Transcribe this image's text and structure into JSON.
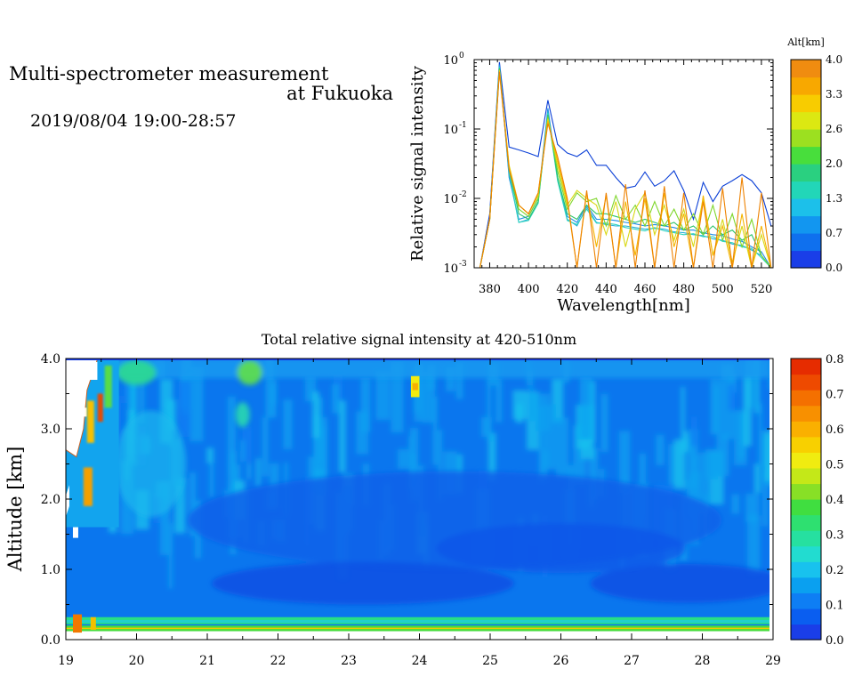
{
  "page": {
    "title_line1": "Multi-spectrometer measurement",
    "title_line2": "at Fukuoka",
    "subtitle": "2019/08/04 19:00-28:57"
  },
  "chart_data": [
    {
      "type": "line",
      "xlabel": "Wavelength[nm]",
      "ylabel": "Relative signal intensity",
      "xlim": [
        372,
        526
      ],
      "ylim": [
        0.001,
        1
      ],
      "yscale": "log",
      "x_ticks": [
        380,
        400,
        420,
        440,
        460,
        480,
        500,
        520
      ],
      "y_ticks": [
        {
          "mant": "10",
          "exp": "0"
        },
        {
          "mant": "10",
          "exp": "-1"
        },
        {
          "mant": "10",
          "exp": "-2"
        },
        {
          "mant": "10",
          "exp": "-3"
        }
      ],
      "x": [
        375,
        380,
        385,
        390,
        395,
        400,
        405,
        410,
        415,
        420,
        425,
        430,
        435,
        440,
        445,
        450,
        455,
        460,
        465,
        470,
        475,
        480,
        485,
        490,
        495,
        500,
        505,
        510,
        515,
        520,
        525
      ],
      "series": [
        {
          "color": "#0a3fd6",
          "values": [
            0.001,
            0.006,
            0.92,
            0.055,
            0.05,
            0.045,
            0.04,
            0.26,
            0.06,
            0.045,
            0.04,
            0.05,
            0.03,
            0.03,
            0.02,
            0.014,
            0.015,
            0.024,
            0.015,
            0.018,
            0.025,
            0.013,
            0.005,
            0.017,
            0.009,
            0.015,
            0.018,
            0.022,
            0.018,
            0.012,
            0.004
          ]
        },
        {
          "color": "#1e8be8",
          "values": [
            0.001,
            0.005,
            0.85,
            0.02,
            0.005,
            0.0055,
            0.01,
            0.2,
            0.02,
            0.0055,
            0.0045,
            0.008,
            0.005,
            0.005,
            0.0048,
            0.0045,
            0.0043,
            0.004,
            0.0042,
            0.004,
            0.0038,
            0.0035,
            0.0035,
            0.0032,
            0.003,
            0.0029,
            0.0026,
            0.0024,
            0.002,
            0.0017,
            0.001
          ]
        },
        {
          "color": "#28b0d8",
          "values": [
            0.001,
            0.005,
            0.8,
            0.022,
            0.0045,
            0.005,
            0.009,
            0.18,
            0.019,
            0.005,
            0.004,
            0.0075,
            0.0045,
            0.0042,
            0.004,
            0.004,
            0.0038,
            0.0036,
            0.0037,
            0.0036,
            0.0033,
            0.0032,
            0.003,
            0.0029,
            0.0026,
            0.0025,
            0.0022,
            0.0021,
            0.0018,
            0.0015,
            0.001
          ]
        },
        {
          "color": "#2fd4c0",
          "values": [
            0.001,
            0.005,
            0.78,
            0.024,
            0.0045,
            0.0048,
            0.0085,
            0.17,
            0.018,
            0.0048,
            0.0042,
            0.007,
            0.0044,
            0.0044,
            0.0042,
            0.0038,
            0.0036,
            0.0034,
            0.0038,
            0.0034,
            0.0032,
            0.003,
            0.0031,
            0.0028,
            0.0028,
            0.0024,
            0.0023,
            0.002,
            0.0019,
            0.0014,
            0.001
          ]
        },
        {
          "color": "#2cc46a",
          "values": [
            0.001,
            0.005,
            0.75,
            0.026,
            0.006,
            0.005,
            0.009,
            0.16,
            0.02,
            0.006,
            0.005,
            0.008,
            0.006,
            0.006,
            0.0055,
            0.005,
            0.0045,
            0.005,
            0.0045,
            0.004,
            0.0045,
            0.0035,
            0.004,
            0.003,
            0.004,
            0.003,
            0.0035,
            0.0025,
            0.003,
            0.0015,
            0.001
          ]
        },
        {
          "color": "#7ed62a",
          "values": [
            0.001,
            0.005,
            0.72,
            0.028,
            0.007,
            0.0055,
            0.01,
            0.15,
            0.025,
            0.007,
            0.012,
            0.009,
            0.01,
            0.004,
            0.011,
            0.005,
            0.008,
            0.004,
            0.009,
            0.004,
            0.007,
            0.0035,
            0.006,
            0.003,
            0.008,
            0.0025,
            0.006,
            0.002,
            0.005,
            0.0015,
            0.001
          ]
        },
        {
          "color": "#d8d814",
          "values": [
            0.001,
            0.005,
            0.7,
            0.03,
            0.008,
            0.006,
            0.011,
            0.14,
            0.03,
            0.008,
            0.013,
            0.01,
            0.008,
            0.003,
            0.009,
            0.002,
            0.007,
            0.012,
            0.003,
            0.008,
            0.0025,
            0.007,
            0.002,
            0.01,
            0.0015,
            0.005,
            0.0012,
            0.004,
            0.001,
            0.003,
            0.001
          ]
        },
        {
          "color": "#f5b400",
          "values": [
            0.001,
            0.005,
            0.68,
            0.028,
            0.008,
            0.006,
            0.012,
            0.13,
            0.035,
            0.009,
            0.001,
            0.012,
            0.002,
            0.011,
            0.001,
            0.009,
            0.0015,
            0.01,
            0.001,
            0.012,
            0.002,
            0.006,
            0.001,
            0.011,
            0.0015,
            0.004,
            0.001,
            0.006,
            0.001,
            0.004,
            0.001
          ]
        },
        {
          "color": "#ee8200",
          "values": [
            0.001,
            0.005,
            0.66,
            0.026,
            0.008,
            0.006,
            0.012,
            0.12,
            0.04,
            0.01,
            0.001,
            0.013,
            0.001,
            0.012,
            0.001,
            0.016,
            0.001,
            0.013,
            0.001,
            0.015,
            0.001,
            0.012,
            0.001,
            0.009,
            0.001,
            0.014,
            0.001,
            0.02,
            0.001,
            0.012,
            0.001
          ]
        }
      ],
      "colorbar": {
        "label": "Alt[km]",
        "tick_labels": [
          "4.0",
          "3.3",
          "2.6",
          "2.0",
          "1.3",
          "0.7",
          "0.0"
        ],
        "colors": [
          "#1a3ee8",
          "#0f70ee",
          "#1296f0",
          "#1cc0ea",
          "#22d6b8",
          "#2ad080",
          "#48de3c",
          "#9ce020",
          "#dce812",
          "#f8cc00",
          "#f8a800",
          "#f08c10"
        ]
      }
    },
    {
      "type": "heatmap",
      "title": "Total relative signal intensity at 420-510nm",
      "ylabel": "Altitude [km]",
      "xlim": [
        19,
        29
      ],
      "ylim": [
        0,
        4
      ],
      "x_tick_labels": [
        "19",
        "20",
        "21",
        "22",
        "23",
        "24",
        "25",
        "26",
        "27",
        "28",
        "29"
      ],
      "y_tick_labels": [
        "0.0",
        "1.0",
        "2.0",
        "3.0",
        "4.0"
      ],
      "data_x_range": [
        19,
        28.95
      ],
      "colorbar": {
        "tick_labels": [
          "0.0",
          "0.1",
          "0.2",
          "0.3",
          "0.4",
          "0.5",
          "0.6",
          "0.7",
          "0.8"
        ],
        "colors": [
          "#1a3ee8",
          "#0a5ef0",
          "#0e7ef4",
          "#0aa0f0",
          "#18c2ee",
          "#22dcd0",
          "#26e0a0",
          "#2ee070",
          "#40de40",
          "#88e026",
          "#c4e818",
          "#f0ec10",
          "#f8d000",
          "#fab000",
          "#f89000",
          "#f47000",
          "#ee4a00",
          "#e62c00"
        ],
        "vmin": 0,
        "vmax": 0.8
      }
    }
  ]
}
